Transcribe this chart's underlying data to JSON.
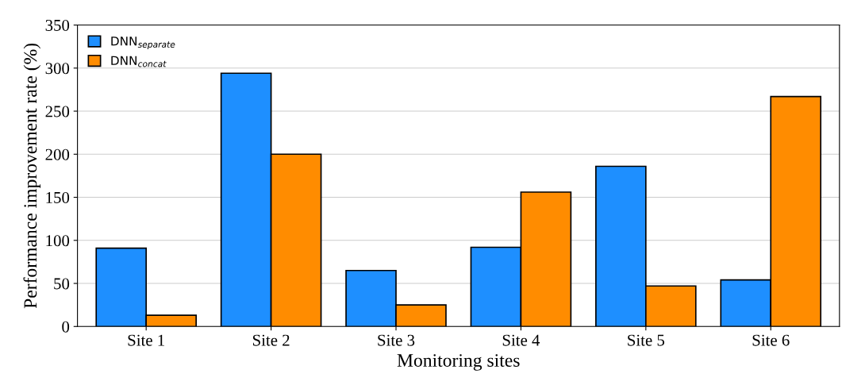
{
  "chart_data": {
    "type": "bar",
    "xlabel": "Monitoring sites",
    "ylabel": "Performance improvement rate (%)",
    "categories": [
      "Site 1",
      "Site 2",
      "Site 3",
      "Site 4",
      "Site 5",
      "Site 6"
    ],
    "series": [
      {
        "name": "DNN$_{separate}$",
        "color": "#1e8fff",
        "values": [
          91,
          294,
          65,
          92,
          186,
          54
        ]
      },
      {
        "name": "DNN$_{concat}$",
        "color": "#ff8c00",
        "values": [
          13,
          200,
          25,
          156,
          47,
          267
        ]
      }
    ],
    "ylim": [
      0,
      350
    ],
    "yticks": [
      0,
      50,
      100,
      150,
      200,
      250,
      300,
      350
    ],
    "grid": "y",
    "legend": "top left"
  }
}
